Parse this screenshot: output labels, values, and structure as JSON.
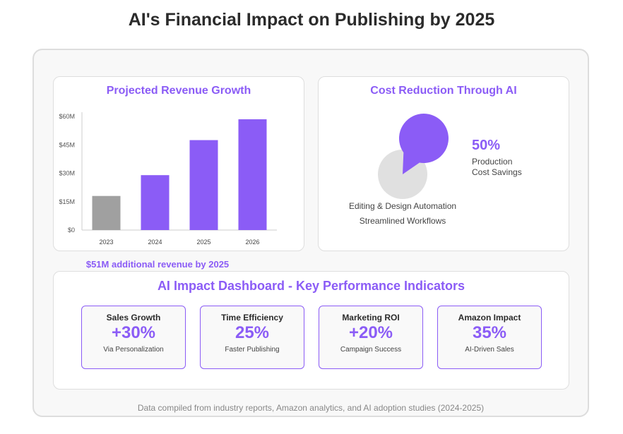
{
  "title": "AI's Financial Impact on Publishing by 2025",
  "revenue": {
    "heading": "Projected Revenue Growth",
    "note": "$51M additional revenue by 2025"
  },
  "cost": {
    "heading": "Cost Reduction Through AI",
    "percent": "50%",
    "percent_label_1": "Production",
    "percent_label_2": "Cost Savings",
    "line1": "Editing & Design Automation",
    "line2": "Streamlined Workflows"
  },
  "kpi": {
    "heading": "AI Impact Dashboard - Key Performance Indicators",
    "items": [
      {
        "title": "Sales Growth",
        "value": "+30%",
        "sub": "Via Personalization"
      },
      {
        "title": "Time Efficiency",
        "value": "25%",
        "sub": "Faster Publishing"
      },
      {
        "title": "Marketing ROI",
        "value": "+20%",
        "sub": "Campaign Success"
      },
      {
        "title": "Amazon Impact",
        "value": "35%",
        "sub": "AI-Driven Sales"
      }
    ]
  },
  "footer": "Data compiled from industry reports, Amazon analytics, and AI adoption studies (2024-2025)",
  "colors": {
    "accent": "#8b5cf6",
    "baseline_bar": "#a0a0a0",
    "muted": "#e0e0e0"
  },
  "chart_data": [
    {
      "type": "bar",
      "title": "Projected Revenue Growth",
      "categories": [
        "2023",
        "2024",
        "2025",
        "2026"
      ],
      "values": [
        18,
        29,
        47.5,
        58.5
      ],
      "bar_colors": [
        "#a0a0a0",
        "#8b5cf6",
        "#8b5cf6",
        "#8b5cf6"
      ],
      "y_ticks": [
        "$0",
        "$15M",
        "$30M",
        "$45M",
        "$60M"
      ],
      "ylim": [
        0,
        60
      ],
      "grid": false
    },
    {
      "type": "pie",
      "title": "Cost Reduction Through AI",
      "slices": [
        {
          "label": "Production Cost Savings",
          "value": 50,
          "color": "#8b5cf6"
        },
        {
          "label": "",
          "value": 50,
          "color": "#e0e0e0"
        }
      ]
    }
  ]
}
